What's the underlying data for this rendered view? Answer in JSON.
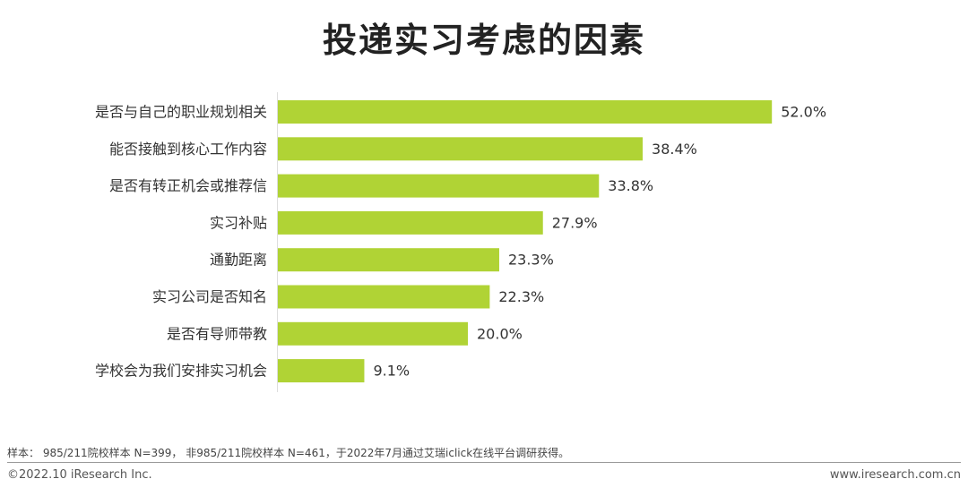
{
  "chart_data": {
    "type": "bar",
    "orientation": "horizontal",
    "title": "投递实习考虑的因素",
    "categories": [
      "是否与自己的职业规划相关",
      "能否接触到核心工作内容",
      "是否有转正机会或推荐信",
      "实习补贴",
      "通勤距离",
      "实习公司是否知名",
      "是否有导师带教",
      "学校会为我们安排实习机会"
    ],
    "values": [
      52.0,
      38.4,
      33.8,
      27.9,
      23.3,
      22.3,
      20.0,
      9.1
    ],
    "value_labels": [
      "52.0%",
      "38.4%",
      "33.8%",
      "27.9%",
      "23.3%",
      "22.3%",
      "20.0%",
      "9.1%"
    ],
    "unit": "%",
    "bar_color": "#b0d335",
    "grid": false,
    "legend": "none"
  },
  "footer": {
    "note": "样本： 985/211院校样本 N=399， 非985/211院校样本 N=461，于2022年7月通过艾瑞iclick在线平台调研获得。",
    "copyright": "©2022.10 iResearch Inc.",
    "website": "www.iresearch.com.cn"
  }
}
